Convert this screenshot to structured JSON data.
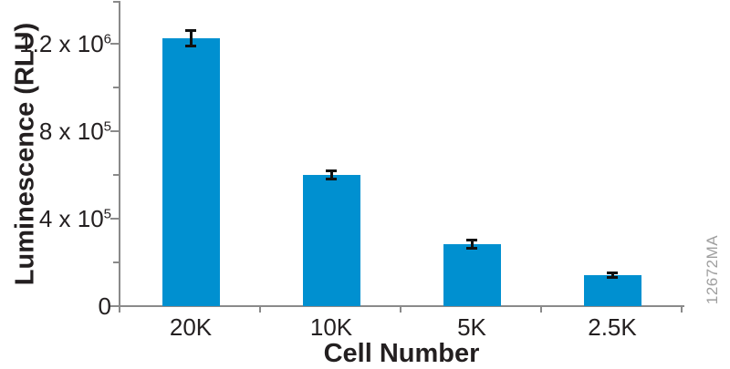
{
  "figure_id": "12672MA",
  "colors": {
    "bar": "#0090d0",
    "axis": "#8a8a8a",
    "text": "#231f20",
    "error_bar": "#111111",
    "figure_id": "#9e9e9e"
  },
  "chart_data": {
    "type": "bar",
    "title": "",
    "xlabel": "Cell Number",
    "ylabel": "Luminescence (RLU)",
    "categories": [
      "20K",
      "10K",
      "5K",
      "2.5K"
    ],
    "values": [
      1225000,
      600000,
      283000,
      142000
    ],
    "errors": [
      36000,
      20000,
      20000,
      12000
    ],
    "ylim": [
      0,
      1400000
    ],
    "grid": false,
    "legend_position": "none",
    "y_major_ticks": [
      {
        "value": 0,
        "label": "0",
        "sup": ""
      },
      {
        "value": 400000,
        "label": "4 x 10",
        "sup": "5"
      },
      {
        "value": 800000,
        "label": "8 x 10",
        "sup": "5"
      },
      {
        "value": 1200000,
        "label": "1.2 x 10",
        "sup": "6"
      }
    ],
    "y_minor_ticks": [
      200000,
      600000,
      1000000,
      1400000
    ]
  }
}
